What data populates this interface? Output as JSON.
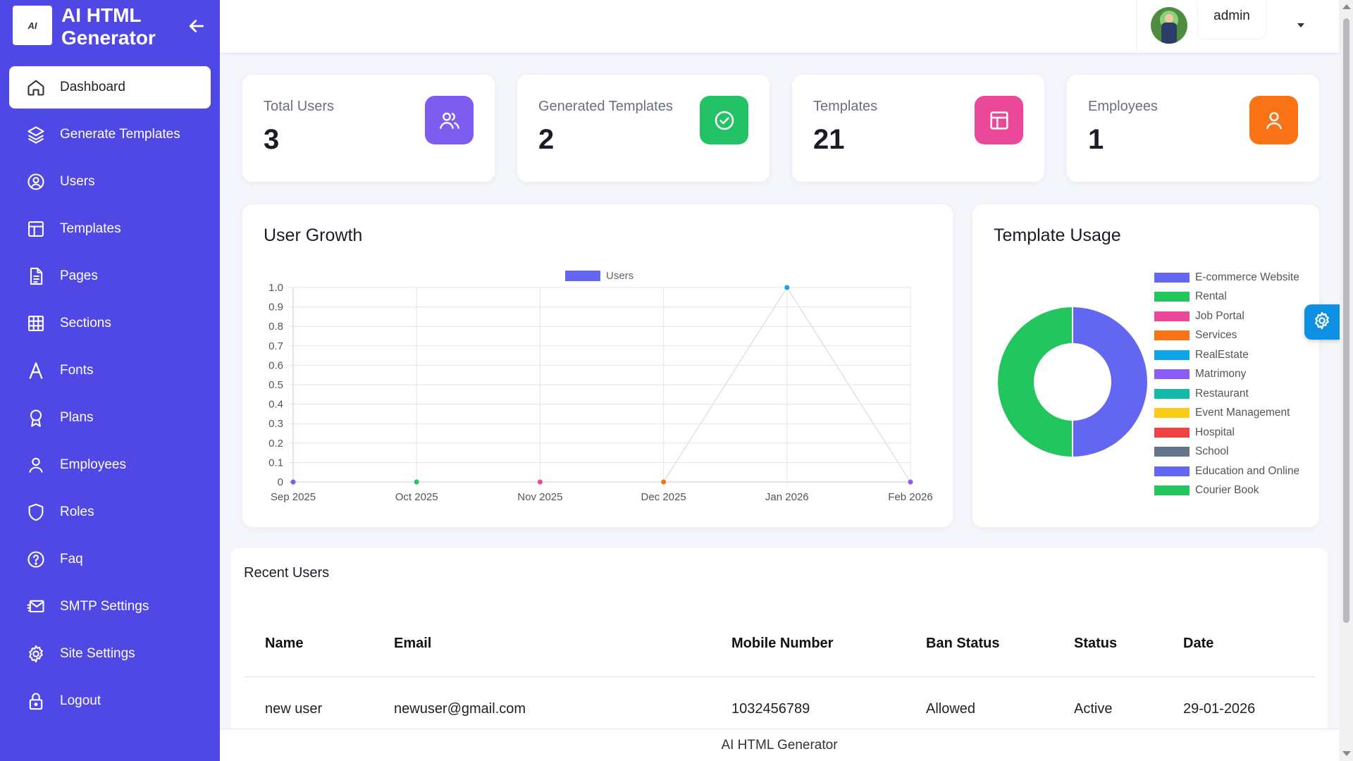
{
  "brand": {
    "title": "AI HTML Generator",
    "logo_text": "AI"
  },
  "sidebar": {
    "items": [
      {
        "label": "Dashboard",
        "icon": "home-icon",
        "active": true
      },
      {
        "label": "Generate Templates",
        "icon": "layers-icon"
      },
      {
        "label": "Users",
        "icon": "user-circle-icon"
      },
      {
        "label": "Templates",
        "icon": "layout-icon"
      },
      {
        "label": "Pages",
        "icon": "file-text-icon"
      },
      {
        "label": "Sections",
        "icon": "grid-icon"
      },
      {
        "label": "Fonts",
        "icon": "font-letter-icon"
      },
      {
        "label": "Plans",
        "icon": "award-icon"
      },
      {
        "label": "Employees",
        "icon": "user-icon"
      },
      {
        "label": "Roles",
        "icon": "shield-icon"
      },
      {
        "label": "Faq",
        "icon": "help-circle-icon"
      },
      {
        "label": "SMTP Settings",
        "icon": "mail-send-icon"
      },
      {
        "label": "Site Settings",
        "icon": "gear-icon"
      },
      {
        "label": "Logout",
        "icon": "lock-icon"
      }
    ]
  },
  "header": {
    "username": "admin"
  },
  "stats": [
    {
      "label": "Total Users",
      "value": "3",
      "icon": "users-icon",
      "color": "#7d5cf0"
    },
    {
      "label": "Generated Templates",
      "value": "2",
      "icon": "check-circle-icon",
      "color": "#24c266"
    },
    {
      "label": "Templates",
      "value": "21",
      "icon": "layout-icon",
      "color": "#ec4899"
    },
    {
      "label": "Employees",
      "value": "1",
      "icon": "user-icon",
      "color": "#f97316"
    }
  ],
  "user_growth": {
    "title": "User Growth"
  },
  "template_usage": {
    "title": "Template Usage"
  },
  "chart_data": [
    {
      "type": "line",
      "title": "User Growth",
      "categories": [
        "Sep 2025",
        "Oct 2025",
        "Nov 2025",
        "Dec 2025",
        "Jan 2026",
        "Feb 2026"
      ],
      "series": [
        {
          "name": "Users",
          "values": [
            0,
            0,
            0,
            0,
            1,
            0
          ],
          "color": "#6366f1"
        }
      ],
      "point_colors": [
        "#6366f1",
        "#22c55e",
        "#ec4899",
        "#f97316",
        "#0ea5e9",
        "#8b5cf6"
      ],
      "ylim": [
        0,
        1.0
      ],
      "yticks": [
        "0",
        "0.1",
        "0.2",
        "0.3",
        "0.4",
        "0.5",
        "0.6",
        "0.7",
        "0.8",
        "0.9",
        "1.0"
      ],
      "grid": true,
      "legend": "top-center"
    },
    {
      "type": "pie",
      "title": "Template Usage",
      "donut": true,
      "categories": [
        "E-commerce Website",
        "Rental",
        "Job Portal",
        "Services",
        "RealEstate",
        "Matrimony",
        "Restaurant",
        "Event Management",
        "Hospital",
        "School",
        "Education and Online",
        "Courier Book"
      ],
      "values": [
        1,
        1,
        0,
        0,
        0,
        0,
        0,
        0,
        0,
        0,
        0,
        0
      ],
      "colors": [
        "#6366f1",
        "#22c55e",
        "#ec4899",
        "#f97316",
        "#0ea5e9",
        "#8b5cf6",
        "#14b8a6",
        "#facc15",
        "#ef4444",
        "#64748b",
        "#6366f1",
        "#22c55e"
      ],
      "legend": "right"
    }
  ],
  "recent_users": {
    "title": "Recent Users",
    "columns": [
      "Name",
      "Email",
      "Mobile Number",
      "Ban Status",
      "Status",
      "Date"
    ],
    "rows": [
      [
        "new user",
        "newuser@gmail.com",
        "1032456789",
        "Allowed",
        "Active",
        "29-01-2026"
      ]
    ]
  },
  "footer": {
    "text": "AI HTML Generator"
  }
}
